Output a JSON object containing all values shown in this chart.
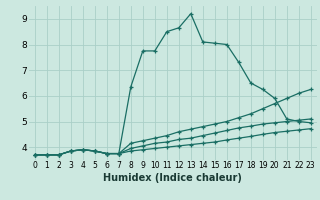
{
  "xlabel": "Humidex (Indice chaleur)",
  "bg_color": "#cce8e0",
  "grid_color": "#aacfc8",
  "line_color": "#1a6e64",
  "xlim": [
    -0.5,
    23.5
  ],
  "ylim": [
    3.5,
    9.5
  ],
  "xticks": [
    0,
    1,
    2,
    3,
    4,
    5,
    6,
    7,
    8,
    9,
    10,
    11,
    12,
    13,
    14,
    15,
    16,
    17,
    18,
    19,
    20,
    21,
    22,
    23
  ],
  "yticks": [
    4,
    5,
    6,
    7,
    8,
    9
  ],
  "series": [
    {
      "x": [
        0,
        1,
        2,
        3,
        4,
        5,
        6,
        7,
        8,
        9,
        10,
        11,
        12,
        13,
        14,
        15,
        16,
        17,
        18,
        19,
        20,
        21,
        22,
        23
      ],
      "y": [
        3.7,
        3.7,
        3.7,
        3.85,
        3.9,
        3.85,
        3.75,
        3.75,
        6.35,
        7.75,
        7.75,
        8.5,
        8.65,
        9.2,
        8.1,
        8.05,
        8.0,
        7.3,
        6.5,
        6.25,
        5.9,
        5.1,
        5.0,
        4.95
      ]
    },
    {
      "x": [
        0,
        1,
        2,
        3,
        4,
        5,
        6,
        7,
        8,
        9,
        10,
        11,
        12,
        13,
        14,
        15,
        16,
        17,
        18,
        19,
        20,
        21,
        22,
        23
      ],
      "y": [
        3.7,
        3.7,
        3.7,
        3.85,
        3.9,
        3.85,
        3.75,
        3.75,
        4.15,
        4.25,
        4.35,
        4.45,
        4.6,
        4.7,
        4.8,
        4.9,
        5.0,
        5.15,
        5.3,
        5.5,
        5.7,
        5.9,
        6.1,
        6.25
      ]
    },
    {
      "x": [
        0,
        1,
        2,
        3,
        4,
        5,
        6,
        7,
        8,
        9,
        10,
        11,
        12,
        13,
        14,
        15,
        16,
        17,
        18,
        19,
        20,
        21,
        22,
        23
      ],
      "y": [
        3.7,
        3.7,
        3.7,
        3.85,
        3.9,
        3.85,
        3.75,
        3.75,
        3.95,
        4.05,
        4.15,
        4.2,
        4.3,
        4.35,
        4.45,
        4.55,
        4.65,
        4.75,
        4.82,
        4.9,
        4.95,
        5.0,
        5.05,
        5.1
      ]
    },
    {
      "x": [
        0,
        1,
        2,
        3,
        4,
        5,
        6,
        7,
        8,
        9,
        10,
        11,
        12,
        13,
        14,
        15,
        16,
        17,
        18,
        19,
        20,
        21,
        22,
        23
      ],
      "y": [
        3.7,
        3.7,
        3.7,
        3.85,
        3.9,
        3.85,
        3.75,
        3.75,
        3.85,
        3.9,
        3.95,
        4.0,
        4.05,
        4.1,
        4.15,
        4.2,
        4.28,
        4.35,
        4.42,
        4.5,
        4.57,
        4.62,
        4.67,
        4.72
      ]
    }
  ]
}
